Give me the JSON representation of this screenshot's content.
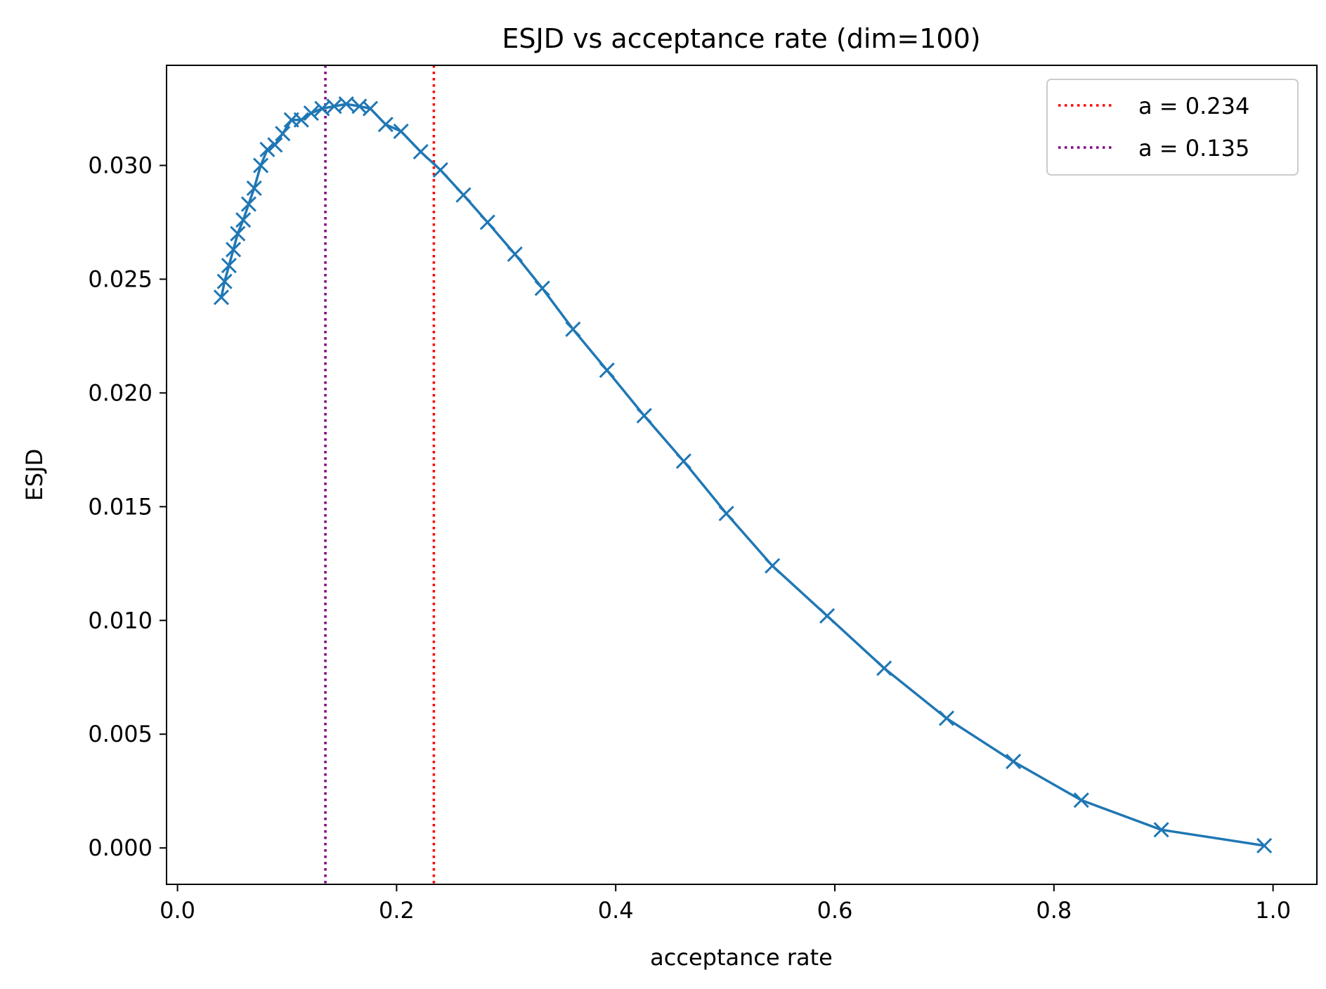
{
  "chart_data": {
    "type": "line",
    "title": "ESJD vs acceptance rate (dim=100)",
    "xlabel": "acceptance rate",
    "ylabel": "ESJD",
    "xlim": [
      -0.01,
      1.04
    ],
    "ylim": [
      -0.0016,
      0.0344
    ],
    "x_ticks": [
      0.0,
      0.2,
      0.4,
      0.6,
      0.8,
      1.0
    ],
    "x_tick_labels": [
      "0.0",
      "0.2",
      "0.4",
      "0.6",
      "0.8",
      "1.0"
    ],
    "y_ticks": [
      0.0,
      0.005,
      0.01,
      0.015,
      0.02,
      0.025,
      0.03
    ],
    "y_tick_labels": [
      "0.000",
      "0.005",
      "0.010",
      "0.015",
      "0.020",
      "0.025",
      "0.030"
    ],
    "grid": false,
    "legend_position": "top-right",
    "series": [
      {
        "color": "#1f77b4",
        "marker": "x",
        "x": [
          0.04,
          0.043,
          0.047,
          0.051,
          0.055,
          0.06,
          0.065,
          0.07,
          0.076,
          0.082,
          0.089,
          0.096,
          0.104,
          0.113,
          0.122,
          0.132,
          0.143,
          0.154,
          0.166,
          0.176,
          0.19,
          0.204,
          0.222,
          0.24,
          0.261,
          0.283,
          0.308,
          0.333,
          0.361,
          0.392,
          0.426,
          0.462,
          0.501,
          0.543,
          0.593,
          0.645,
          0.702,
          0.763,
          0.825,
          0.898,
          0.992
        ],
        "y": [
          0.0242,
          0.0249,
          0.0256,
          0.0263,
          0.027,
          0.0276,
          0.0283,
          0.029,
          0.03,
          0.0307,
          0.0309,
          0.0314,
          0.032,
          0.032,
          0.0323,
          0.0325,
          0.0326,
          0.0327,
          0.0326,
          0.0325,
          0.0318,
          0.0315,
          0.0306,
          0.0298,
          0.0287,
          0.0275,
          0.0261,
          0.0246,
          0.0228,
          0.021,
          0.019,
          0.017,
          0.0147,
          0.0124,
          0.0102,
          0.0079,
          0.0057,
          0.0038,
          0.0021,
          0.0008,
          0.0001
        ]
      }
    ],
    "reference_lines": [
      {
        "x": 0.234,
        "color": "#ff0000",
        "style": "dotted",
        "label": "a = 0.234"
      },
      {
        "x": 0.135,
        "color": "#800080",
        "style": "dotted",
        "label": "a = 0.135"
      }
    ]
  }
}
